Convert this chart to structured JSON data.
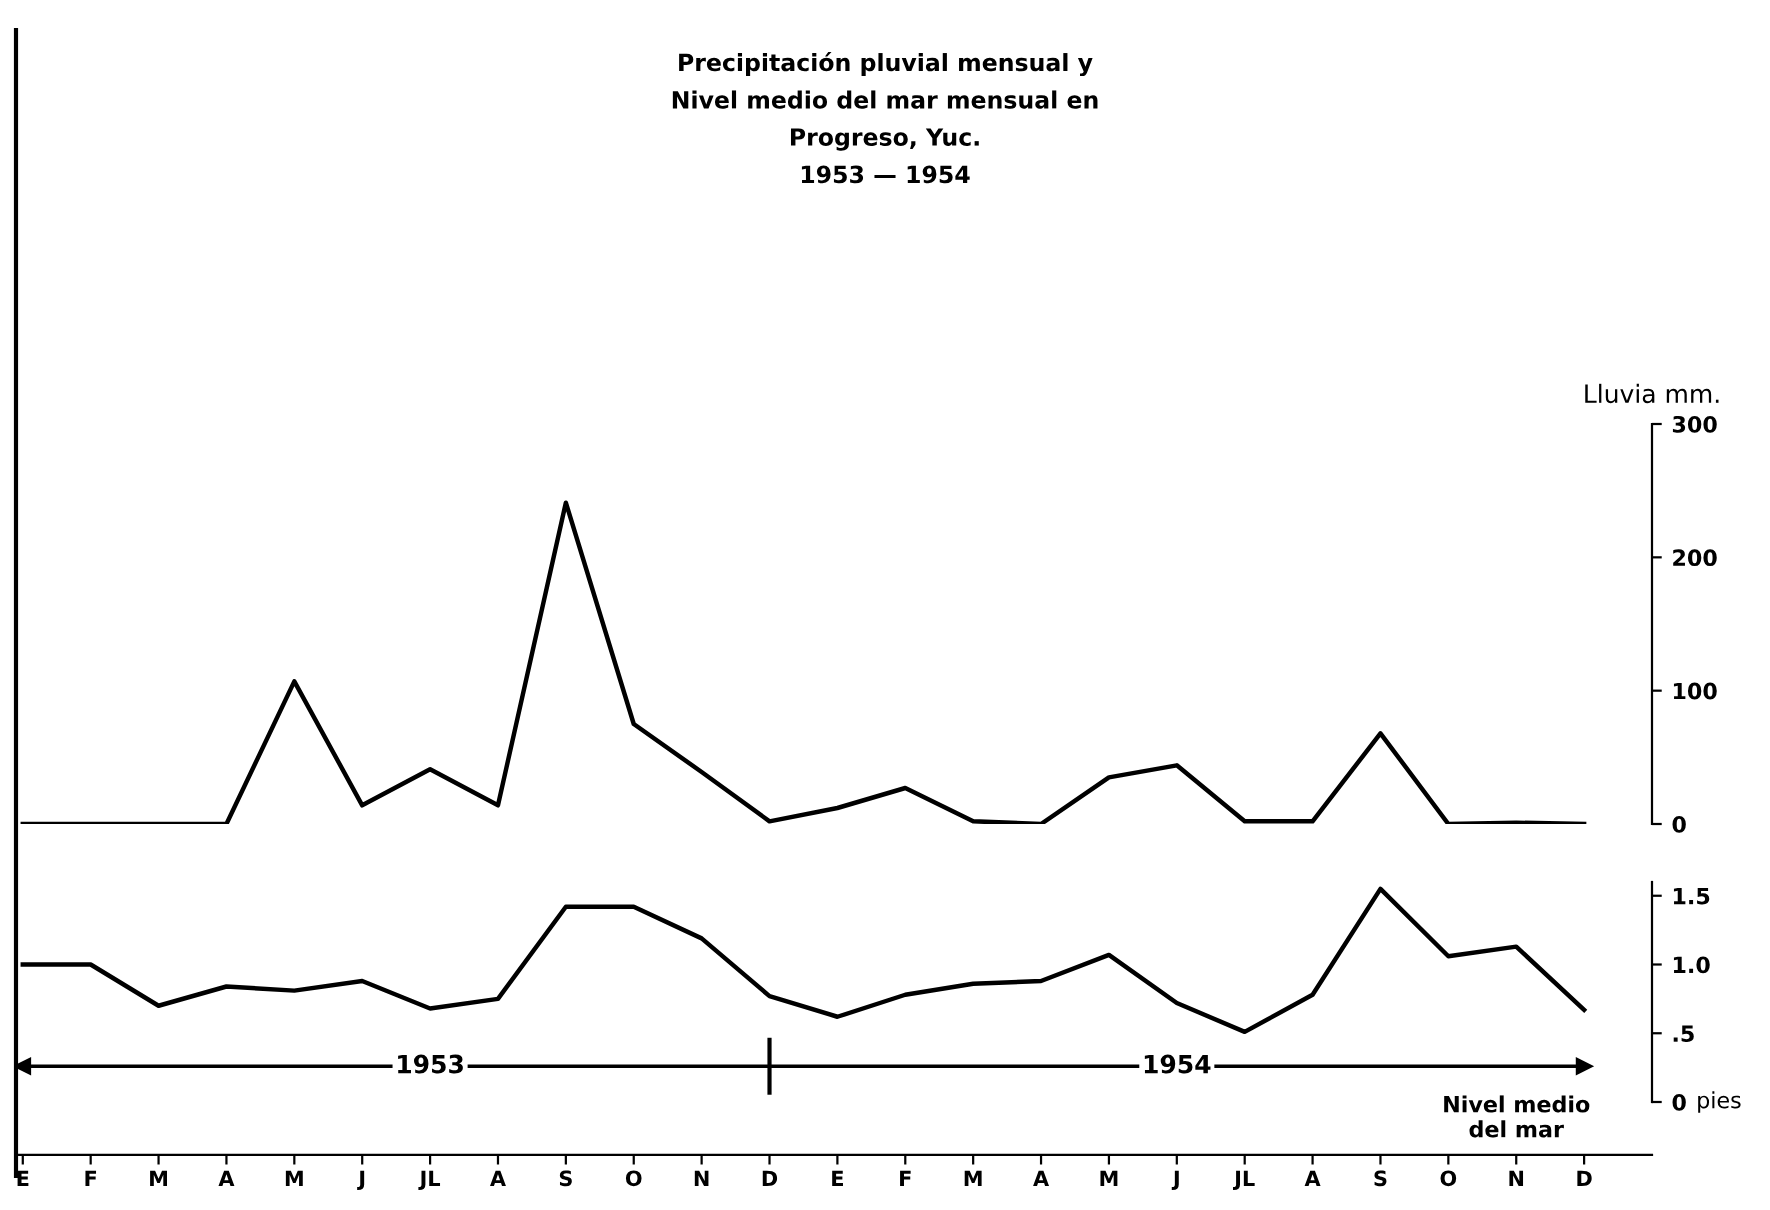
{
  "chart_data": [
    {
      "type": "line",
      "title": "Precipitación pluvial mensual y\nNivel medio del mar mensual en\nProgreso, Yuc.\n1953 — 1954",
      "ylabel": "Lluvia mm.",
      "categories": [
        null,
        null,
        null,
        null,
        null,
        null,
        null,
        null,
        null,
        null,
        null,
        null,
        null,
        null,
        null,
        null,
        null,
        null,
        null,
        null,
        null,
        null,
        null,
        null
      ],
      "series": [
        {
          "color": "#000000",
          "values": [
            0,
            0,
            0,
            0,
            107,
            14,
            41,
            14,
            241,
            75,
            39,
            2,
            12,
            27,
            2,
            0,
            35,
            44,
            2,
            2,
            68,
            0,
            1,
            0
          ]
        }
      ],
      "ylim": [
        0,
        300
      ],
      "yticks": [
        0,
        100,
        200,
        300
      ],
      "grid": false,
      "legend": false,
      "marker": "none",
      "line_style": "solid"
    },
    {
      "type": "line",
      "ylabel": "pies",
      "categories": [
        "E",
        "F",
        "M",
        "A",
        "M",
        "J",
        "JL",
        "A",
        "S",
        "O",
        "N",
        "D",
        "E",
        "F",
        "M",
        "A",
        "M",
        "J",
        "JL",
        "A",
        "S",
        "O",
        "N",
        "D"
      ],
      "series": [
        {
          "color": "#000000",
          "values": [
            1.0,
            1.0,
            0.7,
            0.84,
            0.81,
            0.88,
            0.68,
            0.75,
            1.42,
            1.42,
            1.19,
            0.77,
            0.62,
            0.78,
            0.86,
            0.88,
            1.07,
            0.72,
            0.51,
            0.78,
            1.55,
            1.06,
            1.13,
            0.67
          ]
        }
      ],
      "ylim": [
        0,
        1.6
      ],
      "yticks": [
        0,
        {
          "value": 0.5,
          "label": ".5"
        },
        {
          "value": 1.0,
          "label": "1.0"
        },
        1.5
      ],
      "annotations": [
        "1953",
        "1954",
        "Nivel medio\ndel mar"
      ],
      "ref_lines": [
        {
          "axis": "y",
          "value": 0.26,
          "color": "#000000",
          "line_style": "solid"
        }
      ],
      "grid": false,
      "legend": false,
      "marker": "none",
      "line_style": "solid"
    }
  ]
}
